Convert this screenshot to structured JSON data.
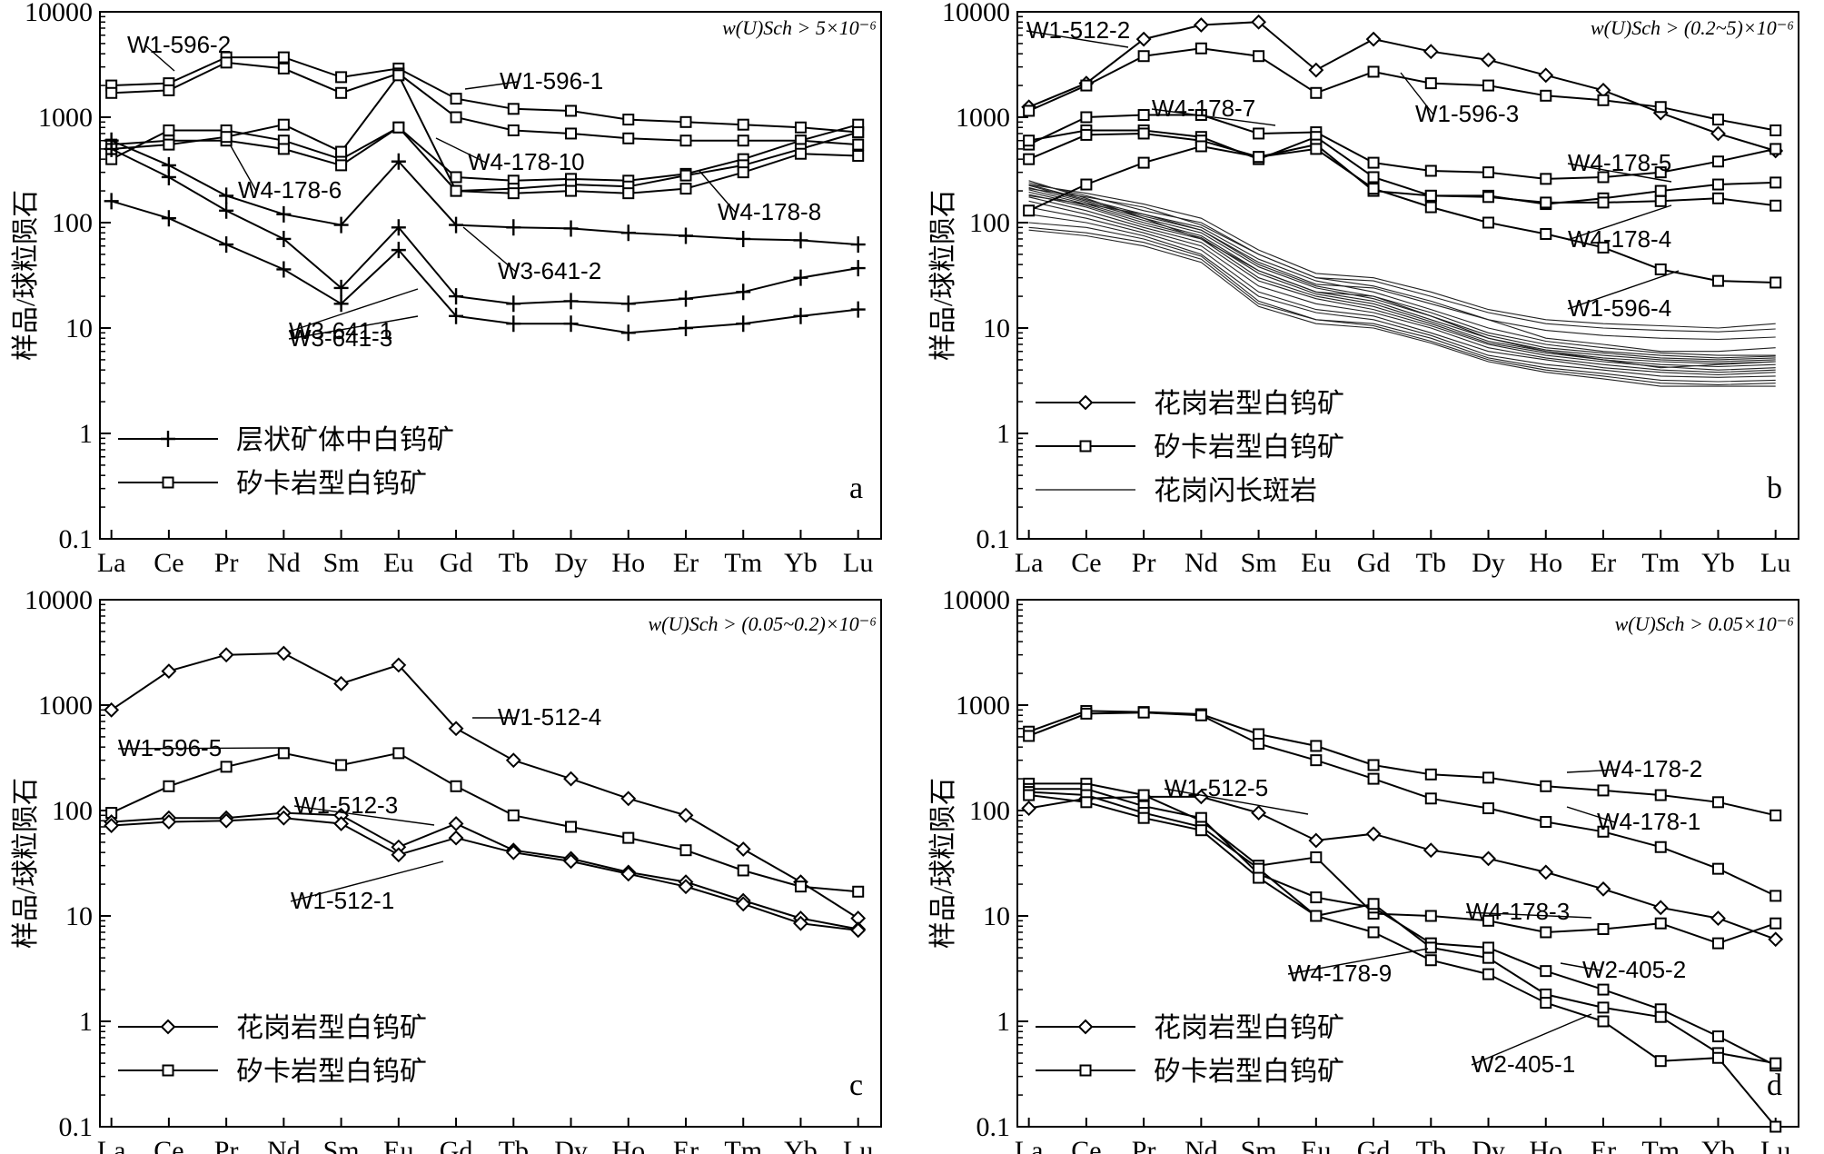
{
  "chart_data": [
    {
      "type": "line",
      "panel": "a",
      "y_scale": "log",
      "ylim": [
        0.1,
        10000
      ],
      "y_ticks": [
        "0.1",
        "1",
        "10",
        "100",
        "1000",
        "10000"
      ],
      "categories": [
        "La",
        "Ce",
        "Pr",
        "Nd",
        "Sm",
        "Eu",
        "Gd",
        "Tb",
        "Dy",
        "Ho",
        "Er",
        "Tm",
        "Yb",
        "Lu"
      ],
      "ylabel": "样品/球粒陨石",
      "condition": "w(U)Sch > 5×10⁻⁶",
      "legend": [
        {
          "label": "层状矿体中白钨矿",
          "marker": "plus"
        },
        {
          "label": "矽卡岩型白钨矿",
          "marker": "square"
        }
      ],
      "series": [
        {
          "name": "W1-596-2",
          "marker": "square",
          "values": [
            2000,
            2100,
            3700,
            3700,
            2400,
            2900,
            1500,
            1200,
            1150,
            950,
            900,
            850,
            800,
            720
          ]
        },
        {
          "name": "W1-596-1",
          "marker": "square",
          "values": [
            1700,
            1800,
            3300,
            2900,
            1700,
            2600,
            1000,
            750,
            700,
            630,
            600,
            600,
            600,
            550
          ]
        },
        {
          "name": "W4-178-6",
          "marker": "square",
          "values": [
            400,
            750,
            750,
            600,
            400,
            800,
            270,
            250,
            260,
            250,
            290,
            400,
            600,
            850
          ]
        },
        {
          "name": "W4-178-10",
          "marker": "square",
          "values": [
            550,
            600,
            600,
            500,
            350,
            800,
            200,
            210,
            230,
            220,
            280,
            350,
            500,
            720
          ]
        },
        {
          "name": "W4-178-8",
          "marker": "square",
          "values": [
            500,
            550,
            650,
            850,
            470,
            2500,
            200,
            190,
            200,
            190,
            210,
            300,
            450,
            430
          ]
        },
        {
          "name": "W3-641-2",
          "marker": "plus",
          "values": [
            600,
            350,
            180,
            120,
            95,
            380,
            95,
            90,
            88,
            80,
            75,
            70,
            68,
            62
          ]
        },
        {
          "name": "W3-641-1",
          "marker": "plus",
          "values": [
            500,
            270,
            130,
            70,
            24,
            90,
            20,
            17,
            18,
            17,
            19,
            22,
            30,
            37
          ]
        },
        {
          "name": "W3-641-3",
          "marker": "plus",
          "values": [
            160,
            110,
            62,
            36,
            17,
            55,
            13,
            11,
            11,
            9,
            10,
            11,
            13,
            15
          ]
        }
      ]
    },
    {
      "type": "line",
      "panel": "b",
      "y_scale": "log",
      "ylim": [
        0.1,
        10000
      ],
      "y_ticks": [
        "0.1",
        "1",
        "10",
        "100",
        "1000",
        "10000"
      ],
      "categories": [
        "La",
        "Ce",
        "Pr",
        "Nd",
        "Sm",
        "Eu",
        "Gd",
        "Tb",
        "Dy",
        "Ho",
        "Er",
        "Tm",
        "Yb",
        "Lu"
      ],
      "ylabel": "样品/球粒陨石",
      "condition": "w(U)Sch > (0.2~5)×10⁻⁶",
      "legend": [
        {
          "label": "花岗岩型白钨矿",
          "marker": "diamond"
        },
        {
          "label": "矽卡岩型白钨矿",
          "marker": "square"
        },
        {
          "label": "花岗闪长斑岩",
          "marker": "none"
        }
      ],
      "series": [
        {
          "name": "W1-512-2",
          "marker": "diamond",
          "values": [
            1250,
            2100,
            5500,
            7500,
            8000,
            2800,
            5500,
            4200,
            3500,
            2500,
            1800,
            1100,
            700,
            480
          ]
        },
        {
          "name": "W1-596-3",
          "marker": "square",
          "values": [
            1150,
            2000,
            3800,
            4500,
            3800,
            1700,
            2700,
            2100,
            2000,
            1600,
            1450,
            1250,
            950,
            750
          ]
        },
        {
          "name": "W4-178-7",
          "marker": "square",
          "values": [
            550,
            1000,
            1050,
            1050,
            700,
            720,
            370,
            310,
            300,
            260,
            270,
            300,
            380,
            500
          ]
        },
        {
          "name": "W4-178-5",
          "marker": "square",
          "values": [
            600,
            750,
            750,
            650,
            400,
            650,
            270,
            180,
            180,
            150,
            170,
            200,
            230,
            240
          ]
        },
        {
          "name": "W4-178-4",
          "marker": "square",
          "values": [
            400,
            680,
            700,
            600,
            420,
            550,
            200,
            180,
            175,
            155,
            155,
            160,
            170,
            145
          ]
        },
        {
          "name": "W1-596-4",
          "marker": "square",
          "values": [
            130,
            230,
            370,
            530,
            420,
            500,
            210,
            140,
            100,
            78,
            58,
            36,
            28,
            27
          ]
        }
      ],
      "background_lines": [
        [
          250,
          170,
          110,
          70,
          35,
          22,
          20,
          13,
          8,
          6,
          5,
          4.2,
          4.5,
          4.8
        ],
        [
          240,
          180,
          130,
          100,
          50,
          30,
          25,
          18,
          12,
          8,
          7,
          6,
          6,
          6.5
        ],
        [
          230,
          165,
          120,
          90,
          45,
          28,
          22,
          15,
          10,
          7.5,
          6.5,
          5.8,
          5.5,
          5.5
        ],
        [
          225,
          160,
          115,
          85,
          40,
          25,
          20,
          14,
          9,
          7,
          6,
          5.5,
          5.2,
          5.4
        ],
        [
          215,
          155,
          110,
          80,
          38,
          24,
          19,
          13,
          8.5,
          6.5,
          5.8,
          5.2,
          5,
          5.2
        ],
        [
          205,
          150,
          105,
          75,
          35,
          22,
          18,
          12,
          8,
          6.2,
          5.5,
          5,
          4.8,
          5
        ],
        [
          195,
          145,
          100,
          72,
          33,
          21,
          17,
          11.5,
          7.5,
          6,
          5.2,
          4.8,
          4.6,
          4.8
        ],
        [
          185,
          140,
          95,
          70,
          30,
          20,
          16,
          11,
          7.2,
          5.8,
          5,
          4.5,
          4.3,
          4.5
        ],
        [
          175,
          130,
          90,
          65,
          28,
          19,
          15,
          10.5,
          7,
          5.5,
          4.8,
          4.3,
          4,
          4.2
        ],
        [
          160,
          120,
          85,
          60,
          25,
          17,
          14,
          10,
          6.5,
          5.2,
          4.5,
          4,
          3.8,
          4
        ],
        [
          140,
          110,
          80,
          55,
          22,
          15,
          13,
          9,
          6,
          5,
          4.2,
          3.8,
          3.6,
          3.8
        ],
        [
          120,
          100,
          75,
          50,
          20,
          14,
          12,
          8.5,
          5.5,
          4.5,
          4,
          3.5,
          3.4,
          3.5
        ],
        [
          100,
          90,
          70,
          48,
          18,
          12,
          11,
          8,
          5.2,
          4.2,
          3.7,
          3.2,
          3.1,
          3.2
        ],
        [
          90,
          80,
          65,
          45,
          17,
          12,
          10.5,
          7.5,
          5,
          4,
          3.5,
          3,
          2.9,
          3
        ],
        [
          85,
          75,
          60,
          42,
          16,
          11,
          10,
          7.2,
          4.8,
          3.8,
          3.3,
          2.8,
          2.8,
          2.8
        ],
        [
          230,
          190,
          150,
          110,
          55,
          33,
          30,
          22,
          15,
          12,
          11,
          10.5,
          10,
          11
        ],
        [
          210,
          175,
          140,
          95,
          50,
          30,
          28,
          20,
          14,
          11,
          10,
          9.5,
          9.2,
          9.8
        ],
        [
          180,
          150,
          120,
          85,
          42,
          26,
          24,
          17,
          12,
          9.5,
          8.5,
          8,
          7.8,
          8.2
        ]
      ]
    },
    {
      "type": "line",
      "panel": "c",
      "y_scale": "log",
      "ylim": [
        0.1,
        10000
      ],
      "y_ticks": [
        "0.1",
        "1",
        "10",
        "100",
        "1000",
        "10000"
      ],
      "categories": [
        "La",
        "Ce",
        "Pr",
        "Nd",
        "Sm",
        "Eu",
        "Gd",
        "Tb",
        "Dy",
        "Ho",
        "Er",
        "Tm",
        "Yb",
        "Lu"
      ],
      "ylabel": "样品/球粒陨石",
      "condition": "w(U)Sch > (0.05~0.2)×10⁻⁶",
      "legend": [
        {
          "label": "花岗岩型白钨矿",
          "marker": "diamond"
        },
        {
          "label": "矽卡岩型白钨矿",
          "marker": "square"
        }
      ],
      "series": [
        {
          "name": "W1-512-4",
          "marker": "diamond",
          "values": [
            900,
            2100,
            3000,
            3100,
            1600,
            2400,
            600,
            300,
            200,
            130,
            90,
            43,
            21,
            9.5
          ]
        },
        {
          "name": "W1-596-5",
          "marker": "square",
          "values": [
            95,
            170,
            260,
            350,
            270,
            350,
            170,
            90,
            70,
            55,
            42,
            27,
            19,
            17
          ]
        },
        {
          "name": "W1-512-3",
          "marker": "diamond",
          "values": [
            78,
            85,
            85,
            95,
            90,
            45,
            75,
            42,
            35,
            26,
            21,
            14,
            9.5,
            7.5
          ]
        },
        {
          "name": "W1-512-1",
          "marker": "diamond",
          "values": [
            72,
            78,
            80,
            85,
            75,
            38,
            55,
            40,
            33,
            25,
            19,
            13,
            8.5,
            7.3
          ]
        }
      ]
    },
    {
      "type": "line",
      "panel": "d",
      "y_scale": "log",
      "ylim": [
        0.1,
        10000
      ],
      "y_ticks": [
        "0.1",
        "1",
        "10",
        "100",
        "1000",
        "10000"
      ],
      "categories": [
        "La",
        "Ce",
        "Pr",
        "Nd",
        "Sm",
        "Eu",
        "Gd",
        "Tb",
        "Dy",
        "Ho",
        "Er",
        "Tm",
        "Yb",
        "Lu"
      ],
      "ylabel": "样品/球粒陨石",
      "condition": "w(U)Sch > 0.05×10⁻⁶",
      "legend": [
        {
          "label": "花岗岩型白钨矿",
          "marker": "diamond"
        },
        {
          "label": "矽卡岩型白钨矿",
          "marker": "square"
        }
      ],
      "series": [
        {
          "name": "W4-178-2",
          "marker": "square",
          "values": [
            560,
            880,
            860,
            820,
            530,
            410,
            270,
            220,
            205,
            170,
            155,
            140,
            120,
            90
          ]
        },
        {
          "name": "W4-178-1",
          "marker": "square",
          "values": [
            510,
            830,
            850,
            800,
            430,
            300,
            200,
            130,
            105,
            78,
            63,
            45,
            28,
            15.5
          ]
        },
        {
          "name": "W1-512-5",
          "marker": "diamond",
          "values": [
            105,
            130,
            135,
            135,
            95,
            52,
            60,
            42,
            35,
            26,
            18,
            12,
            9.5,
            6
          ]
        },
        {
          "name": "W4-178-3",
          "marker": "square",
          "values": [
            180,
            180,
            140,
            80,
            30,
            36,
            10.5,
            10,
            9,
            7,
            7.5,
            8.5,
            5.5,
            8.5
          ]
        },
        {
          "name": "W2-405-2",
          "marker": "square",
          "values": [
            160,
            160,
            110,
            85,
            25,
            15,
            12,
            5.5,
            5,
            3,
            2,
            1.3,
            0.72,
            0.38
          ]
        },
        {
          "name": "W4-178-9",
          "marker": "square",
          "values": [
            150,
            140,
            95,
            70,
            28,
            10,
            13,
            5,
            4,
            1.8,
            1.35,
            1.1,
            0.5,
            0.4
          ]
        },
        {
          "name": "W2-405-1",
          "marker": "square",
          "values": [
            140,
            120,
            85,
            65,
            23,
            10,
            7,
            3.8,
            2.8,
            1.5,
            1,
            0.42,
            0.45,
            0.1
          ]
        }
      ]
    }
  ]
}
